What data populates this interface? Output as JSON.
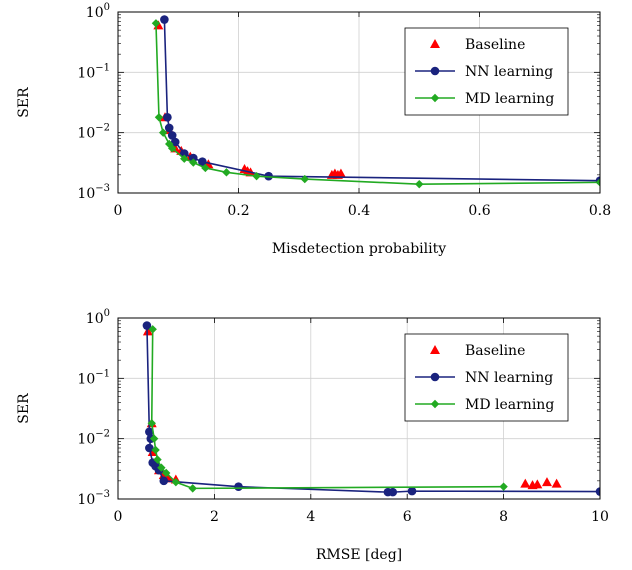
{
  "chart_data": [
    {
      "type": "line",
      "xlabel": "Misdetection probability",
      "ylabel": "SER",
      "xlim": [
        0,
        0.8
      ],
      "ylim": [
        0.001,
        1
      ],
      "yscale": "log",
      "grid": true,
      "legend_position": "top-right",
      "xticks": [
        {
          "value": 0,
          "label": "0"
        },
        {
          "value": 0.2,
          "label": "0.2"
        },
        {
          "value": 0.4,
          "label": "0.4"
        },
        {
          "value": 0.6,
          "label": "0.6"
        },
        {
          "value": 0.8,
          "label": "0.8"
        }
      ],
      "yticks": [
        {
          "value": 1,
          "base": "10",
          "exp": "0"
        },
        {
          "value": 0.1,
          "base": "10",
          "exp": "−1"
        },
        {
          "value": 0.01,
          "base": "10",
          "exp": "−2"
        },
        {
          "value": 0.001,
          "base": "10",
          "exp": "−3"
        }
      ],
      "series": [
        {
          "name": "Baseline",
          "style": "markers",
          "marker": "triangle",
          "color": "#ff0000",
          "points": [
            [
              0.067,
              0.6
            ],
            [
              0.078,
              0.018
            ],
            [
              0.085,
              0.011
            ],
            [
              0.095,
              0.0055
            ],
            [
              0.105,
              0.005
            ],
            [
              0.12,
              0.004
            ],
            [
              0.15,
              0.003
            ],
            [
              0.21,
              0.0025
            ],
            [
              0.215,
              0.0023
            ],
            [
              0.22,
              0.0022
            ],
            [
              0.355,
              0.002
            ],
            [
              0.36,
              0.0021
            ],
            [
              0.365,
              0.002
            ],
            [
              0.37,
              0.0021
            ]
          ]
        },
        {
          "name": "NN learning",
          "style": "line-markers",
          "marker": "circle",
          "color": "#1a237e",
          "points": [
            [
              0.077,
              0.75
            ],
            [
              0.082,
              0.018
            ],
            [
              0.085,
              0.012
            ],
            [
              0.09,
              0.009
            ],
            [
              0.095,
              0.007
            ],
            [
              0.11,
              0.0045
            ],
            [
              0.125,
              0.0038
            ],
            [
              0.14,
              0.0033
            ],
            [
              0.25,
              0.0019
            ],
            [
              0.8,
              0.0016
            ]
          ]
        },
        {
          "name": "MD learning",
          "style": "line-markers",
          "marker": "diamond",
          "color": "#22aa22",
          "points": [
            [
              0.063,
              0.65
            ],
            [
              0.068,
              0.018
            ],
            [
              0.075,
              0.01
            ],
            [
              0.085,
              0.0065
            ],
            [
              0.09,
              0.0055
            ],
            [
              0.11,
              0.0037
            ],
            [
              0.125,
              0.0032
            ],
            [
              0.145,
              0.0026
            ],
            [
              0.18,
              0.0022
            ],
            [
              0.23,
              0.0019
            ],
            [
              0.31,
              0.0017
            ],
            [
              0.5,
              0.0014
            ],
            [
              0.8,
              0.0015
            ]
          ]
        }
      ]
    },
    {
      "type": "line",
      "xlabel": "RMSE [deg]",
      "ylabel": "SER",
      "xlim": [
        0,
        10
      ],
      "ylim": [
        0.001,
        1
      ],
      "yscale": "log",
      "grid": true,
      "legend_position": "top-right",
      "xticks": [
        {
          "value": 0,
          "label": "0"
        },
        {
          "value": 2,
          "label": "2"
        },
        {
          "value": 4,
          "label": "4"
        },
        {
          "value": 6,
          "label": "6"
        },
        {
          "value": 8,
          "label": "8"
        },
        {
          "value": 10,
          "label": "10"
        }
      ],
      "yticks": [
        {
          "value": 1,
          "base": "10",
          "exp": "0"
        },
        {
          "value": 0.1,
          "base": "10",
          "exp": "−1"
        },
        {
          "value": 0.01,
          "base": "10",
          "exp": "−2"
        },
        {
          "value": 0.001,
          "base": "10",
          "exp": "−3"
        }
      ],
      "series": [
        {
          "name": "Baseline",
          "style": "markers",
          "marker": "triangle",
          "color": "#ff0000",
          "points": [
            [
              0.62,
              0.6
            ],
            [
              0.7,
              0.018
            ],
            [
              0.72,
              0.006
            ],
            [
              0.78,
              0.004
            ],
            [
              0.85,
              0.003
            ],
            [
              0.95,
              0.0025
            ],
            [
              1.05,
              0.0022
            ],
            [
              1.2,
              0.0021
            ],
            [
              8.45,
              0.0018
            ],
            [
              8.6,
              0.0017
            ],
            [
              8.7,
              0.00175
            ],
            [
              8.9,
              0.0019
            ],
            [
              9.1,
              0.0018
            ]
          ]
        },
        {
          "name": "NN learning",
          "style": "line-markers",
          "marker": "circle",
          "color": "#1a237e",
          "points": [
            [
              0.6,
              0.75
            ],
            [
              0.65,
              0.013
            ],
            [
              0.68,
              0.01
            ],
            [
              0.65,
              0.007
            ],
            [
              0.72,
              0.004
            ],
            [
              0.78,
              0.0035
            ],
            [
              0.85,
              0.003
            ],
            [
              0.95,
              0.002
            ],
            [
              2.5,
              0.0016
            ],
            [
              5.6,
              0.0013
            ],
            [
              5.7,
              0.0013
            ],
            [
              6.1,
              0.00135
            ],
            [
              10,
              0.00133
            ]
          ]
        },
        {
          "name": "MD learning",
          "style": "line-markers",
          "marker": "diamond",
          "color": "#22aa22",
          "points": [
            [
              0.72,
              0.65
            ],
            [
              0.7,
              0.018
            ],
            [
              0.75,
              0.01
            ],
            [
              0.78,
              0.0065
            ],
            [
              0.82,
              0.0045
            ],
            [
              0.9,
              0.0033
            ],
            [
              1.0,
              0.0027
            ],
            [
              1.2,
              0.0019
            ],
            [
              1.55,
              0.0015
            ],
            [
              8.0,
              0.0016
            ]
          ]
        }
      ]
    }
  ]
}
